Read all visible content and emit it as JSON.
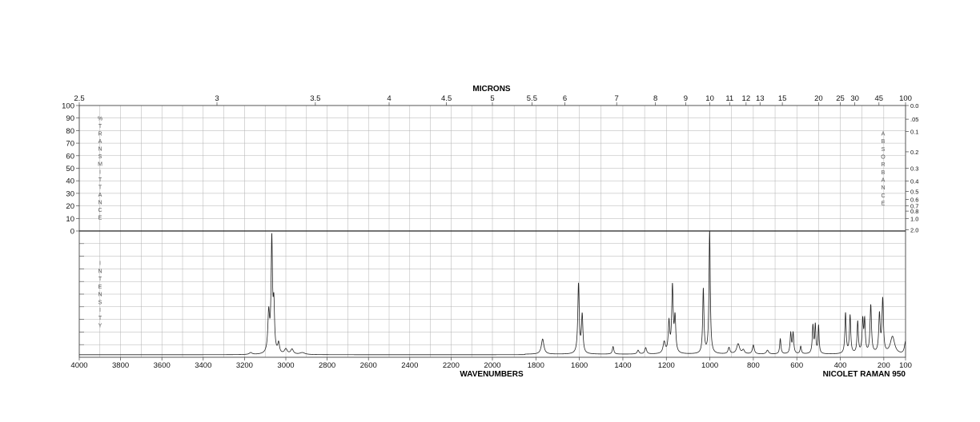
{
  "chart_data": {
    "type": "line",
    "top_axis_title": "MICRONS",
    "bottom_axis_title": "WAVENUMBERS",
    "instrument_label": "NICOLET RAMAN 950",
    "left_upper_label": "%TRANSMITTANCE",
    "right_upper_label": "ABSORBANCE",
    "left_lower_label": "INTENSITY",
    "x_range": [
      4000,
      100
    ],
    "x_ticks": [
      4000,
      3800,
      3600,
      3400,
      3200,
      3000,
      2800,
      2600,
      2400,
      2200,
      2000,
      1800,
      1600,
      1400,
      1200,
      1000,
      800,
      600,
      400,
      200,
      100
    ],
    "micron_ticks": [
      {
        "micron": 2.5,
        "label": "2.5"
      },
      {
        "micron": 3,
        "label": "3"
      },
      {
        "micron": 3.5,
        "label": "3.5"
      },
      {
        "micron": 4,
        "label": "4"
      },
      {
        "micron": 4.5,
        "label": "4.5"
      },
      {
        "micron": 5,
        "label": "5"
      },
      {
        "micron": 5.5,
        "label": "5.5"
      },
      {
        "micron": 6,
        "label": "6"
      },
      {
        "micron": 7,
        "label": "7"
      },
      {
        "micron": 8,
        "label": "8"
      },
      {
        "micron": 9,
        "label": "9"
      },
      {
        "micron": 10,
        "label": "10"
      },
      {
        "micron": 11,
        "label": "11"
      },
      {
        "micron": 12,
        "label": "12"
      },
      {
        "micron": 13,
        "label": "13"
      },
      {
        "micron": 15,
        "label": "15"
      },
      {
        "micron": 20,
        "label": "20"
      },
      {
        "micron": 25,
        "label": "25"
      },
      {
        "micron": 30,
        "label": "30"
      },
      {
        "micron": 45,
        "label": "45"
      },
      {
        "micron": 100,
        "label": "100"
      }
    ],
    "transmittance_ticks": [
      100,
      90,
      80,
      70,
      60,
      50,
      40,
      30,
      20,
      10,
      0
    ],
    "absorbance_ticks": [
      {
        "t": 100,
        "label": "0.0"
      },
      {
        "t": 89.1,
        "label": ".05"
      },
      {
        "t": 79.4,
        "label": "0.1"
      },
      {
        "t": 63.1,
        "label": "0.2"
      },
      {
        "t": 50.1,
        "label": "0.3"
      },
      {
        "t": 39.8,
        "label": "0.4"
      },
      {
        "t": 31.6,
        "label": "0.5"
      },
      {
        "t": 25.1,
        "label": "0.6"
      },
      {
        "t": 19.95,
        "label": "0.7"
      },
      {
        "t": 15.85,
        "label": "0.8"
      },
      {
        "t": 10,
        "label": "1.0"
      },
      {
        "t": 1,
        "label": "2.0"
      }
    ],
    "intensity_range": [
      0,
      100
    ],
    "baseline": 2,
    "peaks": [
      {
        "x": 3170,
        "h": 1.5,
        "w": 8
      },
      {
        "x": 3083,
        "h": 31,
        "w": 5
      },
      {
        "x": 3068,
        "h": 88,
        "w": 4
      },
      {
        "x": 3058,
        "h": 35,
        "w": 4
      },
      {
        "x": 3035,
        "h": 8,
        "w": 5
      },
      {
        "x": 3000,
        "h": 4,
        "w": 8
      },
      {
        "x": 2970,
        "h": 4,
        "w": 8
      },
      {
        "x": 2920,
        "h": 1.5,
        "w": 15
      },
      {
        "x": 1769,
        "h": 12,
        "w": 7
      },
      {
        "x": 1604,
        "h": 55,
        "w": 4
      },
      {
        "x": 1587,
        "h": 30,
        "w": 4
      },
      {
        "x": 1445,
        "h": 6,
        "w": 4
      },
      {
        "x": 1330,
        "h": 3,
        "w": 5
      },
      {
        "x": 1295,
        "h": 5,
        "w": 5
      },
      {
        "x": 1210,
        "h": 9,
        "w": 6
      },
      {
        "x": 1188,
        "h": 24,
        "w": 4
      },
      {
        "x": 1172,
        "h": 52,
        "w": 4
      },
      {
        "x": 1160,
        "h": 27,
        "w": 4
      },
      {
        "x": 1030,
        "h": 51,
        "w": 3.5
      },
      {
        "x": 1001,
        "h": 97,
        "w": 3.5
      },
      {
        "x": 912,
        "h": 5,
        "w": 5
      },
      {
        "x": 870,
        "h": 8,
        "w": 8
      },
      {
        "x": 846,
        "h": 3,
        "w": 6
      },
      {
        "x": 800,
        "h": 7,
        "w": 5
      },
      {
        "x": 735,
        "h": 3,
        "w": 6
      },
      {
        "x": 676,
        "h": 12,
        "w": 3.5
      },
      {
        "x": 628,
        "h": 16,
        "w": 3.5
      },
      {
        "x": 617,
        "h": 16,
        "w": 3.5
      },
      {
        "x": 582,
        "h": 6,
        "w": 3.5
      },
      {
        "x": 526,
        "h": 22,
        "w": 3.5
      },
      {
        "x": 515,
        "h": 22,
        "w": 3
      },
      {
        "x": 500,
        "h": 22,
        "w": 3
      },
      {
        "x": 376,
        "h": 32,
        "w": 3.5
      },
      {
        "x": 355,
        "h": 30,
        "w": 3.5
      },
      {
        "x": 320,
        "h": 25,
        "w": 3.5
      },
      {
        "x": 297,
        "h": 25,
        "w": 3.5
      },
      {
        "x": 288,
        "h": 25,
        "w": 3.5
      },
      {
        "x": 260,
        "h": 38,
        "w": 4
      },
      {
        "x": 220,
        "h": 30,
        "w": 4
      },
      {
        "x": 205,
        "h": 42,
        "w": 4
      },
      {
        "x": 160,
        "h": 14,
        "w": 12
      },
      {
        "x": 100,
        "h": 10,
        "w": 6
      }
    ]
  }
}
